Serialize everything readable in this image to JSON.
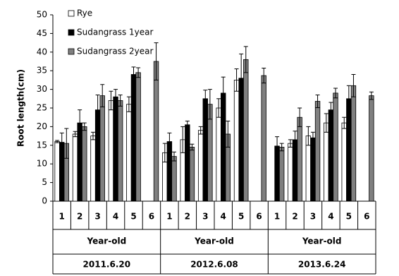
{
  "chart_data": {
    "type": "bar",
    "y_label": "Root length(cm)",
    "categories": [
      "1",
      "2",
      "3",
      "4",
      "5",
      "6",
      "1",
      "2",
      "3",
      "4",
      "5",
      "6",
      "1",
      "2",
      "3",
      "4",
      "5",
      "6"
    ],
    "groups": [
      {
        "label": "Year-old",
        "name": "2011.6.20"
      },
      {
        "label": "Year-old",
        "name": "2012.6.08"
      },
      {
        "label": "Year-old",
        "name": "2013.6.24"
      }
    ],
    "series": [
      {
        "name": "Rye",
        "color": "#ffffff",
        "values": [
          16,
          18,
          17.5,
          27,
          26,
          null,
          13,
          16.5,
          19,
          25,
          32.5,
          null,
          null,
          15.5,
          17.5,
          21,
          21,
          null
        ],
        "errors": [
          0.3,
          0.7,
          1,
          2.5,
          2,
          null,
          2.5,
          3.5,
          1,
          2.5,
          3,
          null,
          null,
          1,
          2.5,
          2.5,
          1.5,
          null
        ]
      },
      {
        "name": "Sudangrass 1year",
        "color": "#000000",
        "values": [
          15.8,
          21,
          24.5,
          28,
          34,
          null,
          16,
          20.5,
          27.5,
          29,
          33,
          null,
          14.8,
          16.5,
          17,
          24.5,
          27.5,
          null
        ],
        "errors": [
          2.5,
          3.5,
          4,
          2,
          2,
          null,
          2.3,
          1,
          2.3,
          4.3,
          6.5,
          null,
          2.5,
          2.3,
          1.5,
          2,
          3.5,
          null
        ]
      },
      {
        "name": "Sudangrass 2year",
        "color": "#808080",
        "values": [
          15.5,
          20,
          28.3,
          27,
          34.5,
          37.5,
          12,
          14.5,
          26,
          18,
          38,
          33.7,
          14.5,
          22.5,
          26.8,
          29,
          31,
          28.3
        ],
        "errors": [
          4,
          1,
          3,
          1.5,
          1.3,
          5,
          1.2,
          0.8,
          4,
          3.5,
          3.5,
          2,
          1,
          2.5,
          1.7,
          1.3,
          3,
          1
        ]
      }
    ],
    "ylim": [
      0,
      50
    ],
    "yticks": [
      0,
      5,
      10,
      15,
      20,
      25,
      30,
      35,
      40,
      45,
      50
    ]
  }
}
